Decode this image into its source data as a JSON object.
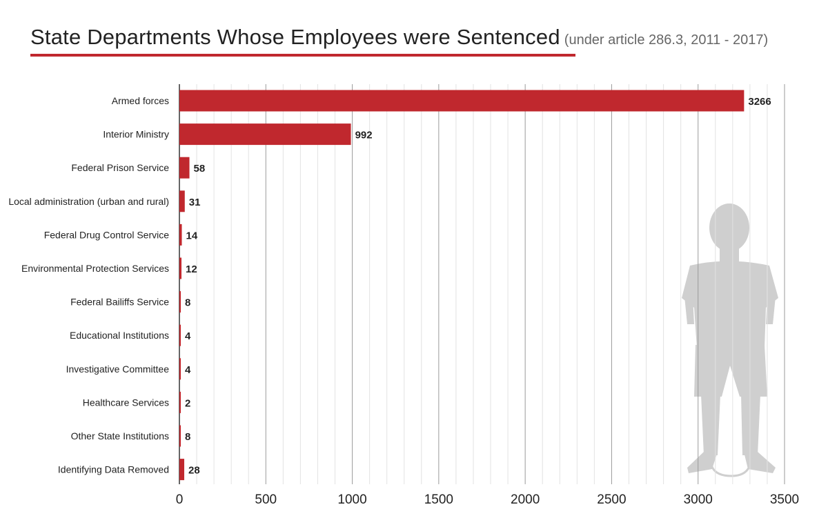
{
  "title": "State Departments Whose Employees were Sentenced",
  "subtitle": "(under article 286.3,  2011 - 2017)",
  "colors": {
    "bar": "#c0282e",
    "rule": "#c0282e",
    "grid": "#d8d8d8",
    "axis": "#333333",
    "silhouette": "#cfcfcf"
  },
  "chart_data": {
    "type": "bar",
    "orientation": "horizontal",
    "categories": [
      "Armed forces",
      "Interior Ministry",
      "Federal Prison Service",
      "Local administration (urban and rural)",
      "Federal Drug Control Service",
      "Environmental Protection Services",
      "Federal Bailiffs Service",
      "Educational Institutions",
      "Investigative Committee",
      "Healthcare Services",
      "Other State Institutions",
      "Identifying Data Removed"
    ],
    "values": [
      3266,
      992,
      58,
      31,
      14,
      12,
      8,
      4,
      4,
      2,
      8,
      28
    ],
    "xlim": [
      0,
      3500
    ],
    "xticks": [
      0,
      500,
      1000,
      1500,
      2000,
      2500,
      3000,
      3500
    ],
    "xlabel": "",
    "ylabel": "",
    "grid": true,
    "data_labels": true
  }
}
